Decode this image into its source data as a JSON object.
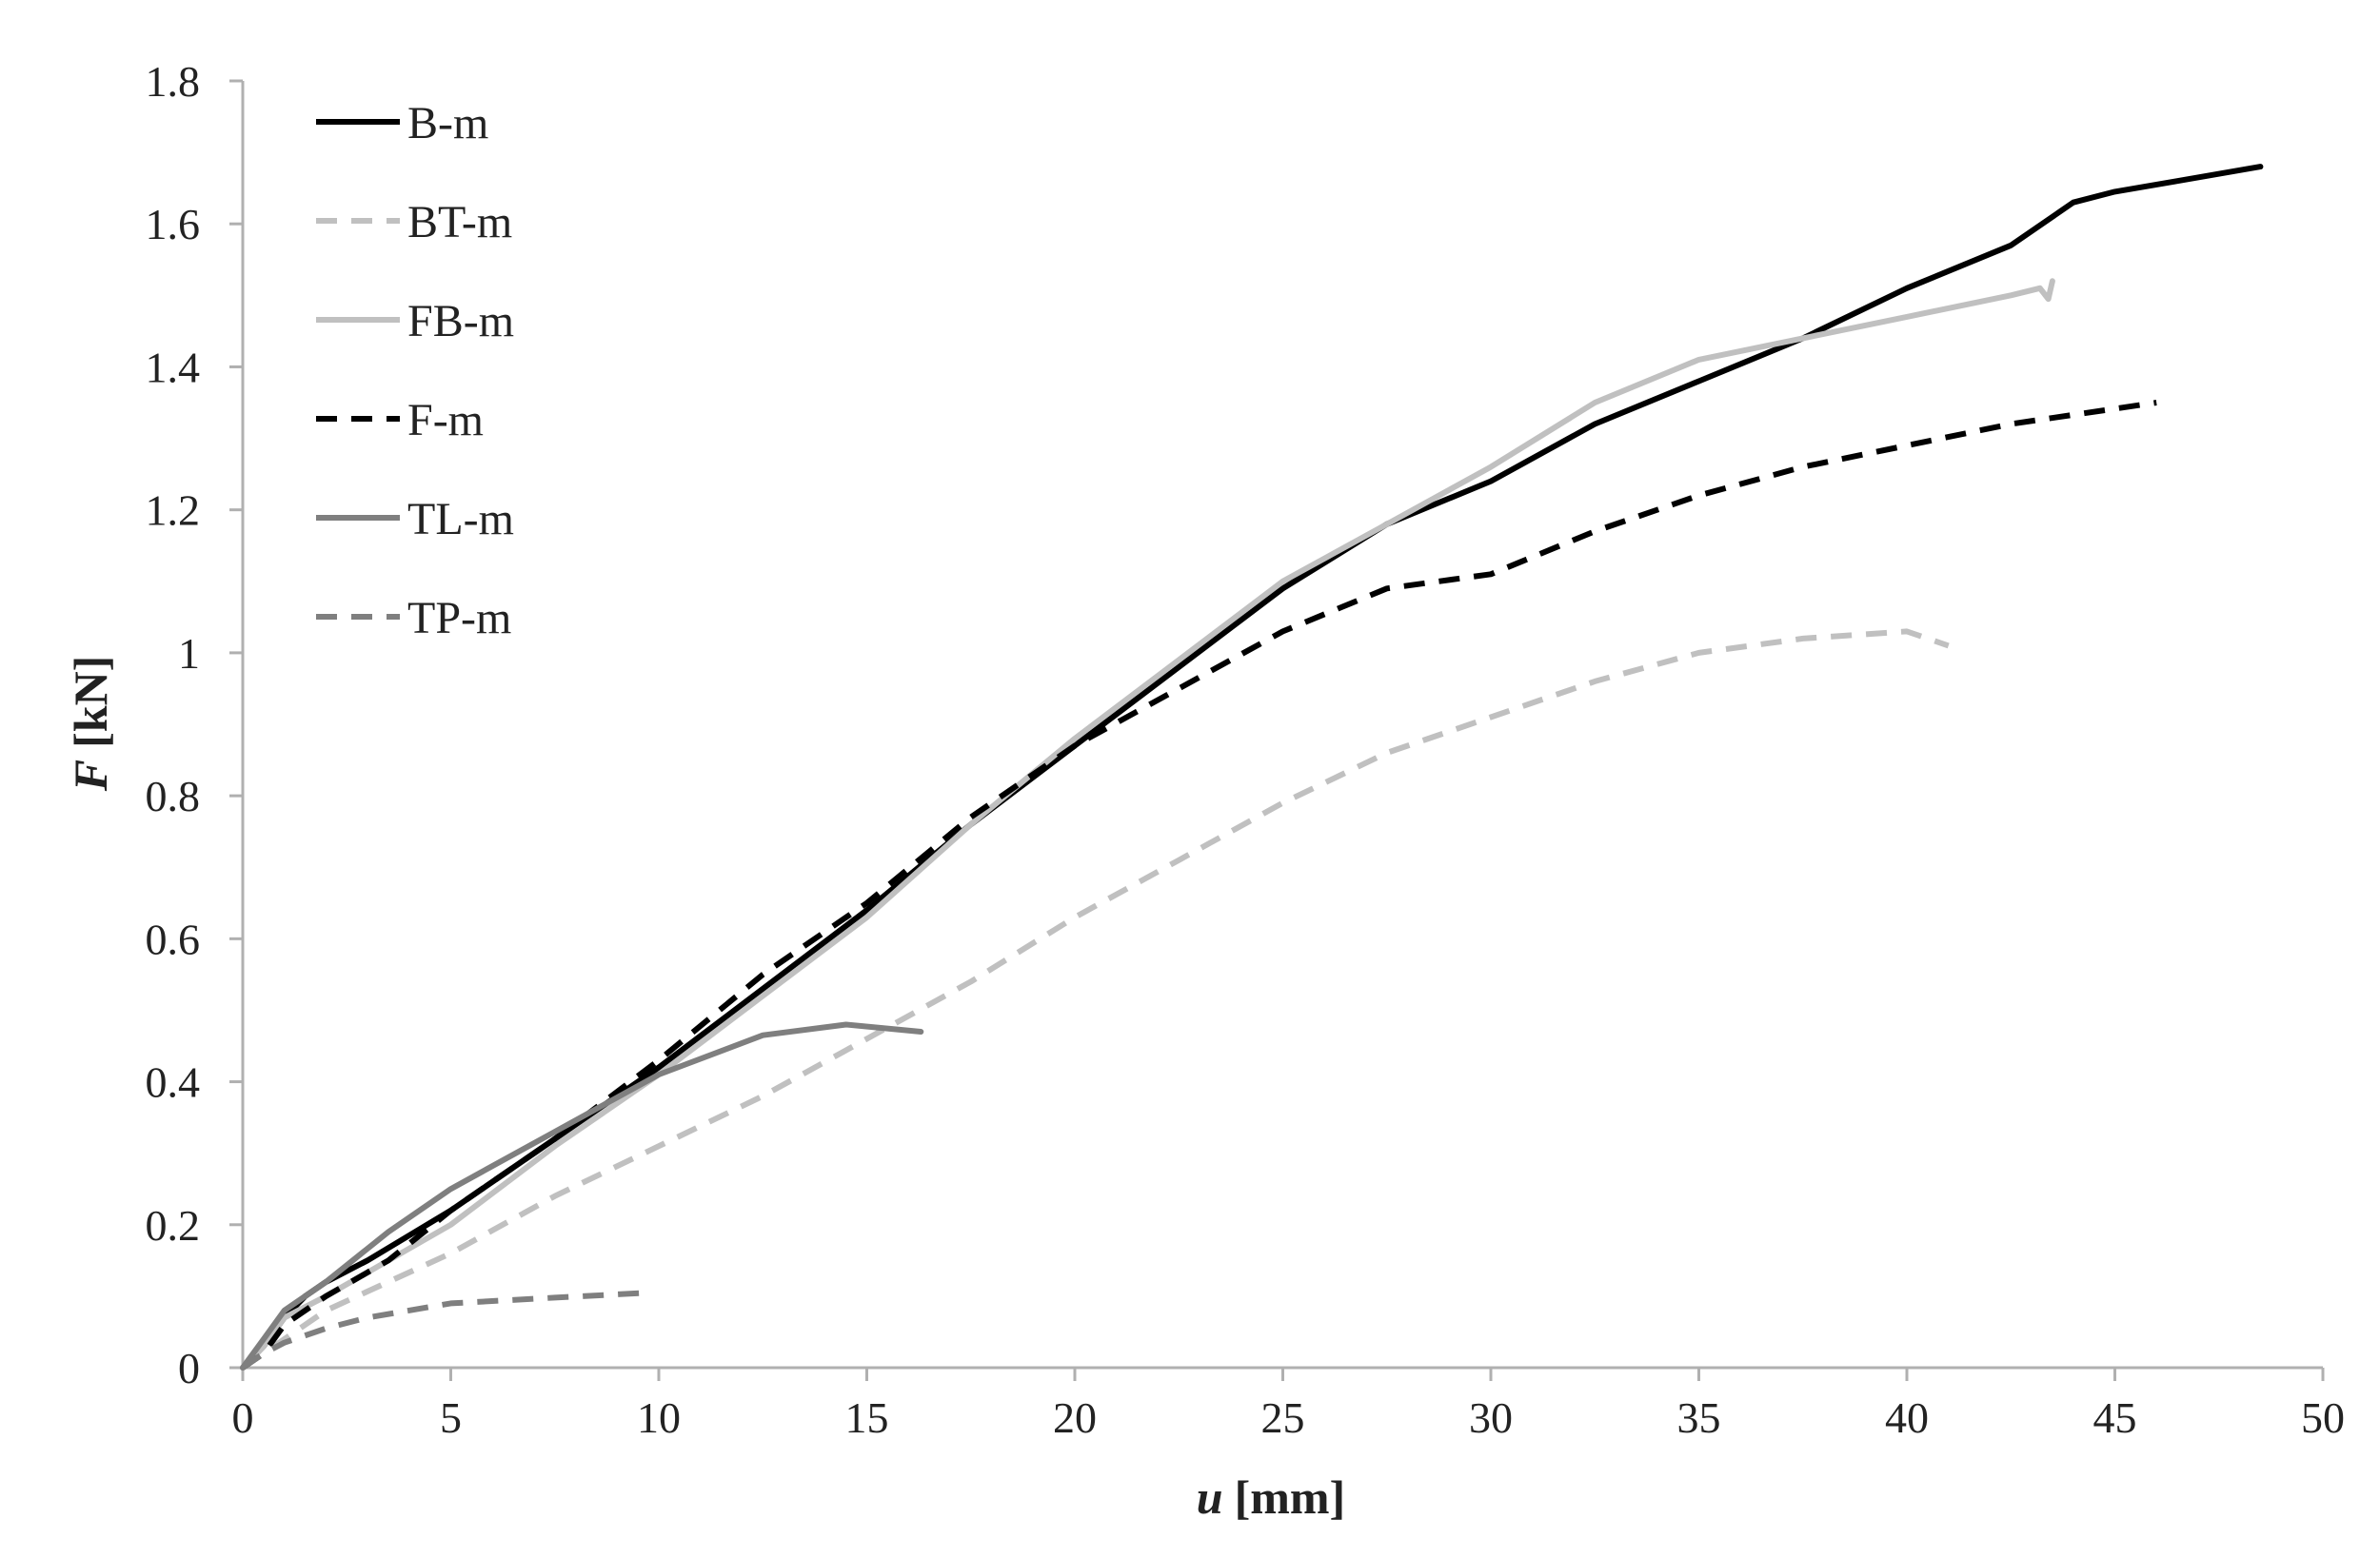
{
  "chart_data": {
    "type": "line",
    "title": "",
    "xlabel": {
      "symbol": "u",
      "unit": "[mm]"
    },
    "ylabel": {
      "symbol": "F",
      "unit": "[kN]"
    },
    "xlim": [
      0,
      50
    ],
    "ylim": [
      0,
      1.8
    ],
    "xticks": [
      0,
      5,
      10,
      15,
      20,
      25,
      30,
      35,
      40,
      45,
      50
    ],
    "yticks": [
      0,
      0.2,
      0.4,
      0.6,
      0.8,
      1,
      1.2,
      1.4,
      1.6,
      1.8
    ],
    "ytick_labels": [
      "0",
      "0.2",
      "0.4",
      "0.6",
      "0.8",
      "1",
      "1.2",
      "1.4",
      "1.6",
      "1.8"
    ],
    "grid": false,
    "legend_position": "top-left",
    "series": [
      {
        "name": "B-m",
        "color": "#000000",
        "dash": "solid",
        "points": [
          [
            0,
            0
          ],
          [
            0.5,
            0.03
          ],
          [
            1,
            0.07
          ],
          [
            1.5,
            0.1
          ],
          [
            2,
            0.12
          ],
          [
            3,
            0.15
          ],
          [
            5,
            0.22
          ],
          [
            7.5,
            0.32
          ],
          [
            10,
            0.42
          ],
          [
            12.5,
            0.53
          ],
          [
            15,
            0.64
          ],
          [
            17.5,
            0.76
          ],
          [
            20,
            0.87
          ],
          [
            22.5,
            0.98
          ],
          [
            25,
            1.09
          ],
          [
            27.5,
            1.18
          ],
          [
            30,
            1.24
          ],
          [
            32.5,
            1.32
          ],
          [
            35,
            1.38
          ],
          [
            37.5,
            1.44
          ],
          [
            40,
            1.51
          ],
          [
            42.5,
            1.57
          ],
          [
            44,
            1.63
          ],
          [
            45,
            1.645
          ],
          [
            46.5,
            1.66
          ],
          [
            48.5,
            1.68
          ]
        ]
      },
      {
        "name": "BT-m",
        "color": "#c0c0c0",
        "dash": "dashed",
        "points": [
          [
            0,
            0
          ],
          [
            0.5,
            0.02
          ],
          [
            1,
            0.04
          ],
          [
            2,
            0.08
          ],
          [
            5,
            0.16
          ],
          [
            7.5,
            0.24
          ],
          [
            10,
            0.31
          ],
          [
            12.5,
            0.38
          ],
          [
            15,
            0.46
          ],
          [
            17.5,
            0.54
          ],
          [
            20,
            0.63
          ],
          [
            22.5,
            0.71
          ],
          [
            25,
            0.79
          ],
          [
            27.5,
            0.86
          ],
          [
            30,
            0.91
          ],
          [
            32.5,
            0.96
          ],
          [
            35,
            1.0
          ],
          [
            37.5,
            1.02
          ],
          [
            40,
            1.03
          ],
          [
            41,
            1.01
          ]
        ]
      },
      {
        "name": "FB-m",
        "color": "#c0c0c0",
        "dash": "solid",
        "points": [
          [
            0,
            0
          ],
          [
            0.5,
            0.03
          ],
          [
            1,
            0.07
          ],
          [
            2,
            0.1
          ],
          [
            5,
            0.2
          ],
          [
            7.5,
            0.31
          ],
          [
            10,
            0.41
          ],
          [
            12.5,
            0.52
          ],
          [
            15,
            0.63
          ],
          [
            17.5,
            0.76
          ],
          [
            20,
            0.88
          ],
          [
            22.5,
            0.99
          ],
          [
            25,
            1.1
          ],
          [
            27.5,
            1.18
          ],
          [
            30,
            1.26
          ],
          [
            32.5,
            1.35
          ],
          [
            35,
            1.41
          ],
          [
            37.5,
            1.44
          ],
          [
            40,
            1.47
          ],
          [
            42.5,
            1.5
          ],
          [
            43.2,
            1.51
          ],
          [
            43.4,
            1.495
          ],
          [
            43.5,
            1.52
          ]
        ]
      },
      {
        "name": "F-m",
        "color": "#000000",
        "dash": "dashed",
        "points": [
          [
            0,
            0
          ],
          [
            0.5,
            0.02
          ],
          [
            1,
            0.06
          ],
          [
            2,
            0.1
          ],
          [
            3.5,
            0.15
          ],
          [
            5,
            0.22
          ],
          [
            7.5,
            0.32
          ],
          [
            10,
            0.43
          ],
          [
            12.5,
            0.55
          ],
          [
            15,
            0.65
          ],
          [
            17.5,
            0.77
          ],
          [
            20,
            0.87
          ],
          [
            22.5,
            0.95
          ],
          [
            25,
            1.03
          ],
          [
            27.5,
            1.09
          ],
          [
            30,
            1.11
          ],
          [
            32.5,
            1.17
          ],
          [
            35,
            1.22
          ],
          [
            37.5,
            1.26
          ],
          [
            40,
            1.29
          ],
          [
            42.5,
            1.32
          ],
          [
            46,
            1.35
          ]
        ]
      },
      {
        "name": "TL-m",
        "color": "#7f7f7f",
        "dash": "solid",
        "points": [
          [
            0,
            0
          ],
          [
            0.5,
            0.04
          ],
          [
            1,
            0.08
          ],
          [
            2,
            0.12
          ],
          [
            3.5,
            0.19
          ],
          [
            5,
            0.25
          ],
          [
            7.5,
            0.33
          ],
          [
            10,
            0.41
          ],
          [
            12.5,
            0.465
          ],
          [
            14.5,
            0.48
          ],
          [
            16.3,
            0.47
          ]
        ]
      },
      {
        "name": "TP-m",
        "color": "#7f7f7f",
        "dash": "dashed",
        "points": [
          [
            0,
            0
          ],
          [
            0.5,
            0.02
          ],
          [
            1,
            0.035
          ],
          [
            2,
            0.055
          ],
          [
            3,
            0.07
          ],
          [
            5,
            0.09
          ],
          [
            7.5,
            0.098
          ],
          [
            9.8,
            0.105
          ]
        ]
      }
    ]
  }
}
